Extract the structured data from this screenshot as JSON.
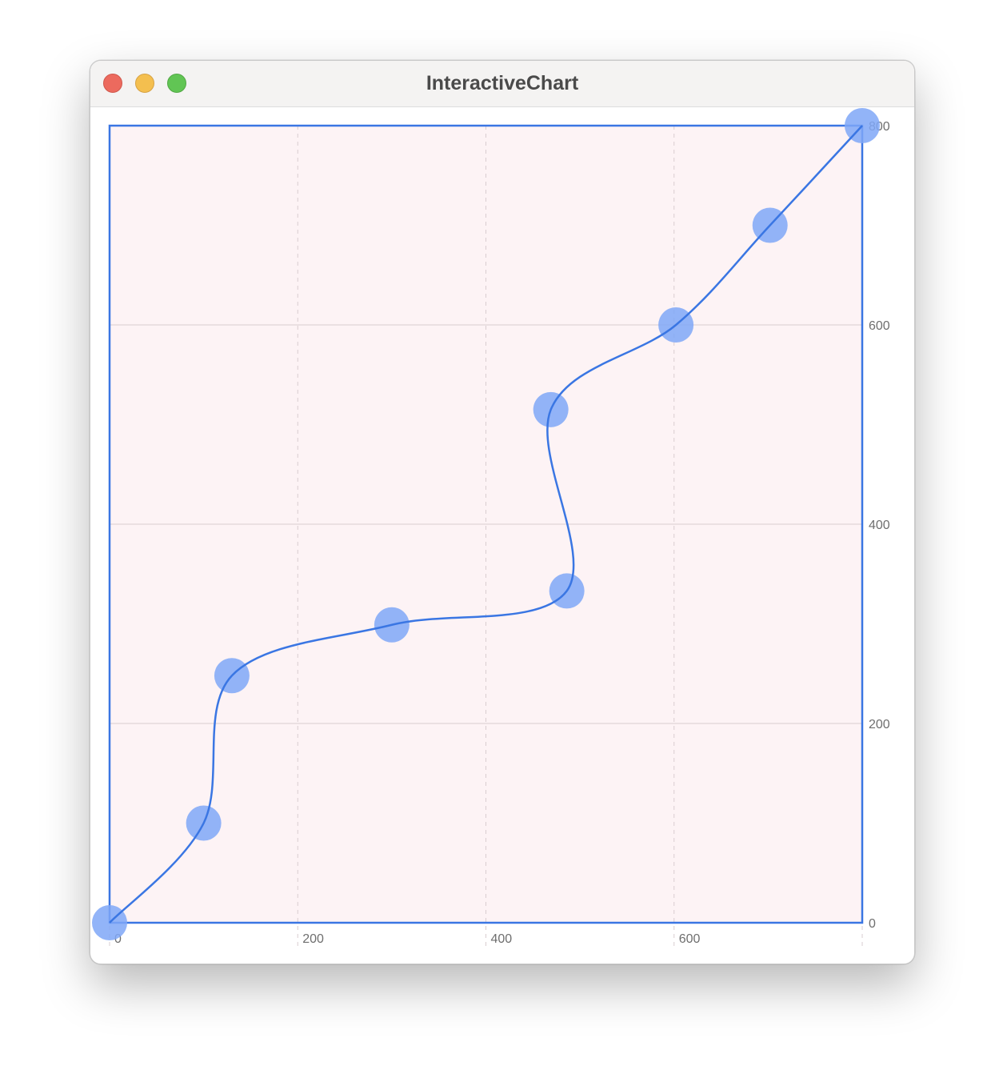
{
  "window": {
    "title": "InteractiveChart"
  },
  "chart_data": {
    "type": "line",
    "curve": "smooth",
    "series": [
      {
        "points": [
          {
            "x": 0,
            "y": 0
          },
          {
            "x": 100,
            "y": 100
          },
          {
            "x": 130,
            "y": 248
          },
          {
            "x": 300,
            "y": 299
          },
          {
            "x": 486,
            "y": 333
          },
          {
            "x": 469,
            "y": 515
          },
          {
            "x": 602,
            "y": 600
          },
          {
            "x": 702,
            "y": 700
          },
          {
            "x": 800,
            "y": 800
          }
        ]
      }
    ],
    "xlim": [
      0,
      800
    ],
    "ylim": [
      0,
      800
    ],
    "x_ticks": [
      0,
      200,
      400,
      600
    ],
    "y_ticks": [
      0,
      200,
      400,
      600,
      800
    ],
    "y_axis_side": "right",
    "grid": true,
    "colors": {
      "line": "#3a76e3",
      "marker": "#7fa7f7",
      "plot_background": "#fdf3f5",
      "grid": "#d9cdd0",
      "frame": "#3a76e3"
    }
  }
}
